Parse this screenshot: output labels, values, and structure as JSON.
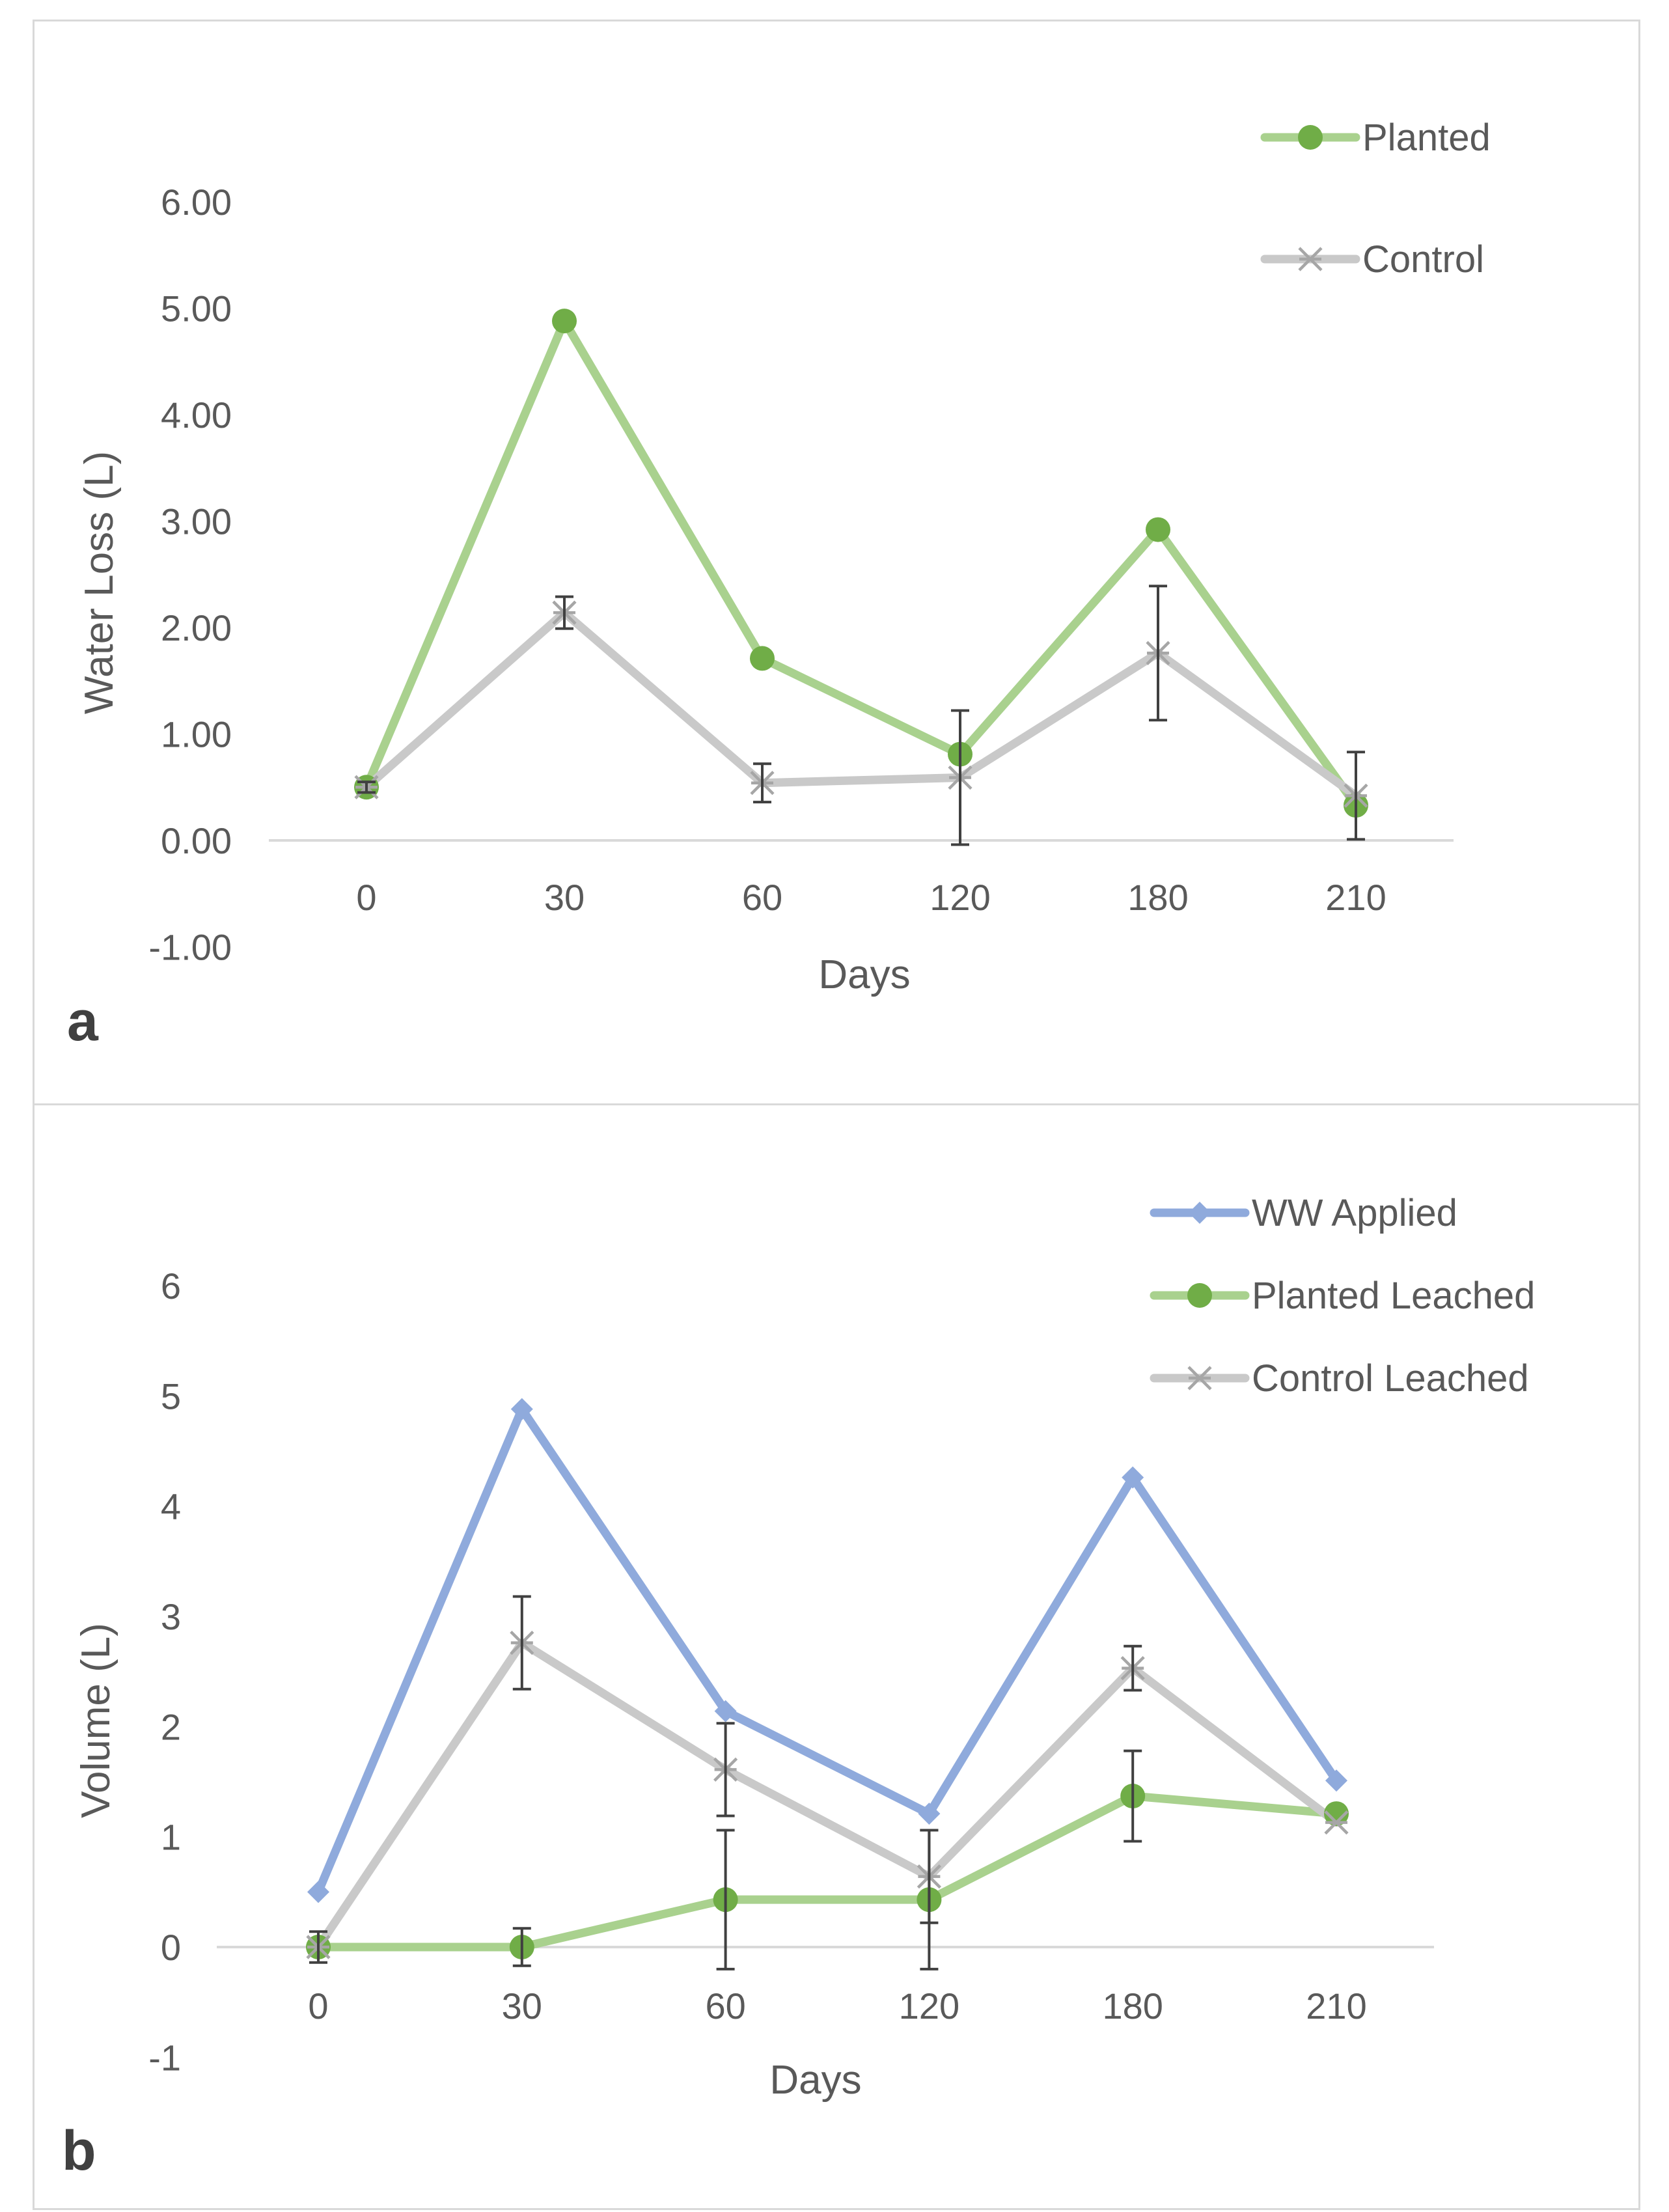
{
  "colors": {
    "blue": "#8faadc",
    "green_line": "#a9d18e",
    "green_marker": "#70ad47",
    "gray_line": "#c9c9c9",
    "gray_marker": "#a6a6a6",
    "error_bar": "#404040",
    "axis": "#d9d9d9"
  },
  "chart_data": [
    {
      "panel_label": "a",
      "type": "line",
      "categories": [
        "0",
        "30",
        "60",
        "120",
        "180",
        "210"
      ],
      "xlabel": "Days",
      "ylabel": "Water Loss (L)",
      "ylim": [
        -1,
        6
      ],
      "yticks": [
        "-1.00",
        "0.00",
        "1.00",
        "2.00",
        "3.00",
        "4.00",
        "5.00",
        "6.00"
      ],
      "grid": false,
      "legend_position": "top-right",
      "series": [
        {
          "name": "Planted",
          "marker": "circle",
          "values": [
            0.5,
            4.88,
            1.71,
            0.81,
            2.92,
            0.33
          ],
          "errors": [
            0,
            0,
            0,
            0,
            0,
            0
          ]
        },
        {
          "name": "Control",
          "marker": "star",
          "values": [
            0.5,
            2.14,
            0.54,
            0.59,
            1.76,
            0.42
          ],
          "errors": [
            0.05,
            0.15,
            0.18,
            0.63,
            0.63,
            0.41
          ]
        }
      ]
    },
    {
      "panel_label": "b",
      "type": "line",
      "categories": [
        "0",
        "30",
        "60",
        "120",
        "180",
        "210"
      ],
      "xlabel": "Days",
      "ylabel": "Volume  (L)",
      "ylim": [
        -1,
        6
      ],
      "yticks": [
        "-1",
        "0",
        "1",
        "2",
        "3",
        "4",
        "5",
        "6"
      ],
      "grid": false,
      "legend_position": "top-right",
      "series": [
        {
          "name": "WW Applied",
          "marker": "diamond",
          "values": [
            0.5,
            4.88,
            2.14,
            1.21,
            4.26,
            1.51
          ],
          "errors": [
            0,
            0,
            0,
            0,
            0,
            0
          ]
        },
        {
          "name": "Planted Leached",
          "marker": "circle",
          "values": [
            0,
            0,
            0.43,
            0.43,
            1.37,
            1.21
          ],
          "errors": [
            0,
            0.17,
            0.63,
            0.63,
            0.41,
            0
          ]
        },
        {
          "name": "Control Leached",
          "marker": "star",
          "values": [
            0,
            2.76,
            1.61,
            0.64,
            2.53,
            1.13
          ],
          "errors": [
            0.14,
            0.42,
            0.42,
            0.42,
            0.2,
            0
          ]
        }
      ]
    }
  ]
}
